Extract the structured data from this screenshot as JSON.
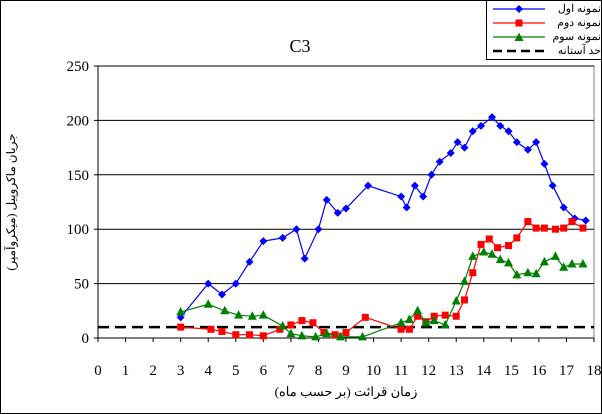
{
  "chart_data": {
    "type": "line",
    "title": "C3",
    "xlabel": "زمان قرائت (بر حسب ماه)",
    "ylabel": "جریان ماکروپیل (میکروآمپر)",
    "xlim": [
      0,
      18
    ],
    "ylim": [
      0,
      250
    ],
    "xticks": [
      "0",
      "1",
      "2",
      "3",
      "4",
      "5",
      "6",
      "7",
      "8",
      "9",
      "10",
      "11",
      "12",
      "13",
      "14",
      "15",
      "16",
      "17",
      "18"
    ],
    "yticks": [
      "0",
      "50",
      "100",
      "150",
      "200",
      "250"
    ],
    "legend_position": "top-right",
    "series": [
      {
        "name": "نمونه اول",
        "color": "#0000FF",
        "marker": "diamond",
        "x": [
          3,
          4,
          4.5,
          5,
          5.5,
          6,
          6.7,
          7.2,
          7.5,
          8,
          8.3,
          8.7,
          9,
          9.8,
          11,
          11.2,
          11.5,
          11.8,
          12.1,
          12.4,
          12.8,
          13.05,
          13.3,
          13.6,
          13.9,
          14.3,
          14.6,
          14.9,
          15.2,
          15.6,
          15.9,
          16.2,
          16.5,
          16.9,
          17.3,
          17.7
        ],
        "y": [
          19,
          50,
          40,
          50,
          70,
          89,
          92,
          100,
          73,
          100,
          127,
          115,
          119,
          140,
          130,
          120,
          140,
          130,
          150,
          162,
          170,
          180,
          175,
          190,
          195,
          203,
          195,
          190,
          180,
          173,
          180,
          160,
          140,
          120,
          110,
          108
        ]
      },
      {
        "name": "نمونه دوم",
        "color": "#FF0000",
        "marker": "square",
        "x": [
          3,
          4.1,
          4.5,
          5,
          5.5,
          6,
          6.6,
          7,
          7.4,
          7.8,
          8.2,
          8.6,
          9,
          9.7,
          11,
          11.3,
          11.6,
          11.9,
          12.2,
          12.6,
          13,
          13.3,
          13.6,
          13.9,
          14.2,
          14.5,
          14.9,
          15.2,
          15.6,
          15.9,
          16.2,
          16.6,
          16.9,
          17.2,
          17.6
        ],
        "y": [
          10,
          8,
          6,
          3,
          3,
          2,
          8,
          12,
          16,
          14,
          5,
          3,
          5,
          19,
          8,
          8,
          20,
          15,
          20,
          21,
          20,
          35,
          60,
          86,
          91,
          83,
          85,
          92,
          107,
          101,
          101,
          100,
          101,
          107,
          101
        ]
      },
      {
        "name": "نمونه سوم",
        "color": "#008000",
        "marker": "triangle",
        "x": [
          3,
          4,
          4.6,
          5.1,
          5.6,
          6,
          6.7,
          7,
          7.4,
          7.9,
          8.3,
          8.8,
          9.6,
          11,
          11.3,
          11.6,
          11.9,
          12.2,
          12.6,
          13,
          13.3,
          13.6,
          14,
          14.3,
          14.6,
          14.9,
          15.2,
          15.6,
          15.9,
          16.2,
          16.6,
          16.9,
          17.2,
          17.6
        ],
        "y": [
          24,
          31,
          25,
          21,
          20,
          21,
          11,
          4,
          2,
          1,
          4,
          1,
          1,
          14,
          17,
          25,
          14,
          16,
          12,
          34,
          52,
          75,
          79,
          77,
          72,
          69,
          58,
          60,
          59,
          70,
          75,
          65,
          68,
          68
        ]
      },
      {
        "name": "حد آستانه",
        "color": "#000000",
        "marker": "none",
        "dashed": true,
        "x": [
          0,
          18
        ],
        "y": [
          10,
          10
        ]
      }
    ]
  }
}
